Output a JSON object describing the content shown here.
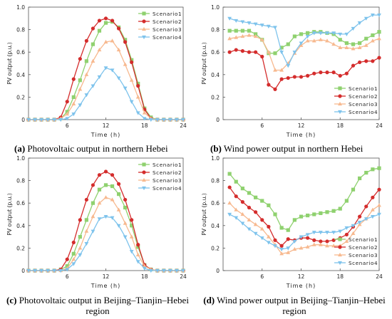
{
  "captions": {
    "a": {
      "tag": "(a)",
      "text": "Photovoltaic output in northern Hebei"
    },
    "b": {
      "tag": "(b)",
      "text": "Wind power output in northern Hebei"
    },
    "c": {
      "tag": "(c)",
      "text": "Photovoltaic output in Beijing–Tianjin–Hebei",
      "text2": "region"
    },
    "d": {
      "tag": "(d)",
      "text": "Wind power output in Beijing–Tianjin–Hebei",
      "text2": "region"
    }
  },
  "colors": {
    "Scenario1": "#8fd16f",
    "Scenario2": "#d42c2c",
    "Scenario3": "#f7b98f",
    "Scenario4": "#7ec3ec"
  },
  "chart_data": [
    {
      "id": "a",
      "type": "line",
      "xlabel": "Time (h)",
      "ylabel": "PV output (p.u.)",
      "xlim": [
        0,
        24
      ],
      "ylim": [
        0,
        1.0
      ],
      "xticks": [
        6,
        12,
        18,
        24
      ],
      "yticks": [
        0,
        0.2,
        0.4,
        0.6,
        0.8,
        1.0
      ],
      "legend_position": "top-right",
      "x": [
        0,
        1,
        2,
        3,
        4,
        5,
        6,
        7,
        8,
        9,
        10,
        11,
        12,
        13,
        14,
        15,
        16,
        17,
        18,
        19,
        20,
        21,
        22,
        23,
        24
      ],
      "series": [
        {
          "name": "Scenario1",
          "marker": "square",
          "values": [
            0,
            0,
            0,
            0,
            0,
            0.01,
            0.07,
            0.2,
            0.35,
            0.52,
            0.67,
            0.79,
            0.86,
            0.87,
            0.82,
            0.71,
            0.53,
            0.32,
            0.1,
            0.02,
            0,
            0,
            0,
            0,
            0
          ]
        },
        {
          "name": "Scenario2",
          "marker": "circle",
          "values": [
            0,
            0,
            0,
            0,
            0,
            0.02,
            0.16,
            0.36,
            0.54,
            0.7,
            0.81,
            0.88,
            0.9,
            0.88,
            0.81,
            0.69,
            0.51,
            0.3,
            0.09,
            0.01,
            0,
            0,
            0,
            0,
            0
          ]
        },
        {
          "name": "Scenario3",
          "marker": "triangle-up",
          "values": [
            0,
            0,
            0,
            0,
            0,
            0.01,
            0.05,
            0.14,
            0.27,
            0.4,
            0.52,
            0.62,
            0.69,
            0.7,
            0.62,
            0.49,
            0.35,
            0.2,
            0.06,
            0.01,
            0,
            0,
            0,
            0,
            0
          ]
        },
        {
          "name": "Scenario4",
          "marker": "triangle-down",
          "values": [
            0,
            0,
            0,
            0,
            0,
            0,
            0.01,
            0.05,
            0.13,
            0.22,
            0.3,
            0.38,
            0.46,
            0.44,
            0.37,
            0.28,
            0.16,
            0.06,
            0.01,
            0,
            0,
            0,
            0,
            0,
            0
          ]
        }
      ]
    },
    {
      "id": "b",
      "type": "line",
      "xlabel": "Time (h)",
      "ylabel": "PV output (p.u.)",
      "xlim": [
        0,
        24
      ],
      "ylim": [
        0,
        1.0
      ],
      "xticks": [
        6,
        12,
        18,
        24
      ],
      "yticks": [
        0,
        0.2,
        0.4,
        0.6,
        0.8,
        1.0
      ],
      "legend_position": "bottom-right",
      "x": [
        1,
        2,
        3,
        4,
        5,
        6,
        7,
        8,
        9,
        10,
        11,
        12,
        13,
        14,
        15,
        16,
        17,
        18,
        19,
        20,
        21,
        22,
        23,
        24
      ],
      "series": [
        {
          "name": "Scenario1",
          "marker": "square",
          "values": [
            0.79,
            0.79,
            0.79,
            0.79,
            0.76,
            0.71,
            0.59,
            0.59,
            0.64,
            0.67,
            0.74,
            0.76,
            0.77,
            0.78,
            0.78,
            0.77,
            0.76,
            0.71,
            0.68,
            0.67,
            0.68,
            0.72,
            0.75,
            0.78
          ]
        },
        {
          "name": "Scenario2",
          "marker": "circle",
          "values": [
            0.6,
            0.62,
            0.61,
            0.6,
            0.6,
            0.56,
            0.31,
            0.27,
            0.36,
            0.37,
            0.38,
            0.38,
            0.39,
            0.41,
            0.42,
            0.42,
            0.42,
            0.39,
            0.41,
            0.48,
            0.51,
            0.52,
            0.52,
            0.55
          ]
        },
        {
          "name": "Scenario3",
          "marker": "triangle-up",
          "values": [
            0.72,
            0.73,
            0.74,
            0.75,
            0.74,
            0.71,
            0.6,
            0.44,
            0.44,
            0.5,
            0.59,
            0.66,
            0.7,
            0.7,
            0.71,
            0.7,
            0.67,
            0.64,
            0.64,
            0.63,
            0.64,
            0.66,
            0.7,
            0.72
          ]
        },
        {
          "name": "Scenario4",
          "marker": "triangle-down",
          "values": [
            0.9,
            0.88,
            0.87,
            0.86,
            0.85,
            0.84,
            0.83,
            0.82,
            0.6,
            0.48,
            0.6,
            0.68,
            0.74,
            0.77,
            0.77,
            0.77,
            0.77,
            0.76,
            0.76,
            0.81,
            0.86,
            0.9,
            0.93,
            0.93
          ]
        }
      ]
    },
    {
      "id": "c",
      "type": "line",
      "xlabel": "Time (h)",
      "ylabel": "PV output (p.u.)",
      "xlim": [
        0,
        24
      ],
      "ylim": [
        0,
        1.0
      ],
      "xticks": [
        6,
        12,
        18,
        24
      ],
      "yticks": [
        0,
        0.2,
        0.4,
        0.6,
        0.8,
        1.0
      ],
      "legend_position": "top-right",
      "x": [
        0,
        1,
        2,
        3,
        4,
        5,
        6,
        7,
        8,
        9,
        10,
        11,
        12,
        13,
        14,
        15,
        16,
        17,
        18,
        19,
        20,
        21,
        22,
        23,
        24
      ],
      "series": [
        {
          "name": "Scenario1",
          "marker": "square",
          "values": [
            0,
            0,
            0,
            0,
            0,
            0.01,
            0.04,
            0.15,
            0.3,
            0.45,
            0.6,
            0.72,
            0.76,
            0.75,
            0.68,
            0.56,
            0.4,
            0.21,
            0.05,
            0.01,
            0,
            0,
            0,
            0,
            0
          ]
        },
        {
          "name": "Scenario2",
          "marker": "circle",
          "values": [
            0,
            0,
            0,
            0,
            0,
            0.01,
            0.1,
            0.25,
            0.45,
            0.63,
            0.76,
            0.85,
            0.88,
            0.85,
            0.77,
            0.63,
            0.45,
            0.23,
            0.05,
            0.01,
            0,
            0,
            0,
            0,
            0
          ]
        },
        {
          "name": "Scenario3",
          "marker": "triangle-up",
          "values": [
            0,
            0,
            0,
            0,
            0,
            0,
            0.02,
            0.1,
            0.2,
            0.35,
            0.48,
            0.6,
            0.65,
            0.63,
            0.54,
            0.42,
            0.3,
            0.14,
            0.04,
            0.01,
            0,
            0,
            0,
            0,
            0
          ]
        },
        {
          "name": "Scenario4",
          "marker": "triangle-down",
          "values": [
            0,
            0,
            0,
            0,
            0,
            0,
            0.01,
            0.06,
            0.14,
            0.24,
            0.35,
            0.46,
            0.48,
            0.47,
            0.4,
            0.3,
            0.17,
            0.08,
            0.02,
            0,
            0,
            0,
            0,
            0,
            0
          ]
        }
      ]
    },
    {
      "id": "d",
      "type": "line",
      "xlabel": "Time (h)",
      "ylabel": "PV output (p.u.)",
      "xlim": [
        0,
        24
      ],
      "ylim": [
        0,
        1.0
      ],
      "xticks": [
        6,
        12,
        18,
        24
      ],
      "yticks": [
        0,
        0.2,
        0.4,
        0.6,
        0.8,
        1.0
      ],
      "legend_position": "bottom-right",
      "x": [
        1,
        2,
        3,
        4,
        5,
        6,
        7,
        8,
        9,
        10,
        11,
        12,
        13,
        14,
        15,
        16,
        17,
        18,
        19,
        20,
        21,
        22,
        23,
        24
      ],
      "series": [
        {
          "name": "Scenario1",
          "marker": "square",
          "values": [
            0.86,
            0.79,
            0.73,
            0.69,
            0.65,
            0.62,
            0.58,
            0.5,
            0.38,
            0.36,
            0.45,
            0.48,
            0.49,
            0.5,
            0.51,
            0.52,
            0.53,
            0.55,
            0.62,
            0.72,
            0.82,
            0.87,
            0.9,
            0.91
          ]
        },
        {
          "name": "Scenario2",
          "marker": "circle",
          "values": [
            0.74,
            0.66,
            0.61,
            0.56,
            0.52,
            0.45,
            0.39,
            0.27,
            0.22,
            0.28,
            0.27,
            0.29,
            0.29,
            0.27,
            0.26,
            0.26,
            0.27,
            0.29,
            0.32,
            0.39,
            0.48,
            0.57,
            0.65,
            0.72
          ]
        },
        {
          "name": "Scenario3",
          "marker": "triangle-up",
          "values": [
            0.6,
            0.54,
            0.5,
            0.45,
            0.41,
            0.37,
            0.3,
            0.23,
            0.15,
            0.16,
            0.19,
            0.2,
            0.21,
            0.23,
            0.23,
            0.22,
            0.22,
            0.22,
            0.26,
            0.33,
            0.41,
            0.46,
            0.54,
            0.58
          ]
        },
        {
          "name": "Scenario4",
          "marker": "triangle-down",
          "values": [
            0.5,
            0.47,
            0.42,
            0.37,
            0.33,
            0.29,
            0.25,
            0.22,
            0.19,
            0.2,
            0.26,
            0.3,
            0.32,
            0.34,
            0.34,
            0.34,
            0.34,
            0.35,
            0.38,
            0.4,
            0.43,
            0.46,
            0.48,
            0.5
          ]
        }
      ]
    }
  ]
}
